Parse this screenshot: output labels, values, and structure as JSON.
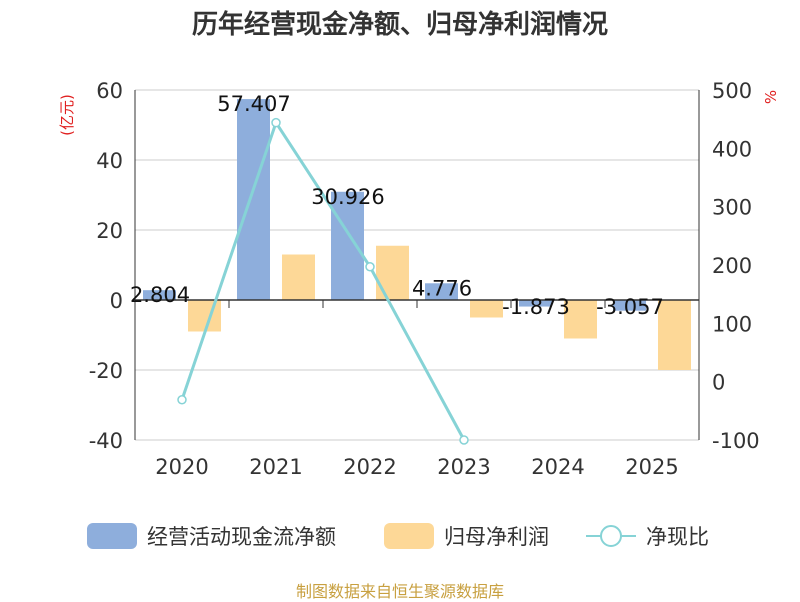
{
  "chart_data": {
    "type": "bar+line",
    "title": "历年经营现金净额、归母净利润情况",
    "categories": [
      "2020",
      "2021",
      "2022",
      "2023",
      "2024",
      "2025"
    ],
    "y_left": {
      "label": "(亿元)",
      "min": -40,
      "max": 60,
      "ticks": [
        -40,
        -20,
        0,
        20,
        40,
        60
      ]
    },
    "y_right": {
      "label": "%",
      "min": -100,
      "max": 500,
      "ticks": [
        -100,
        0,
        100,
        200,
        300,
        400,
        500
      ]
    },
    "series": [
      {
        "name": "经营活动现金流净额",
        "type": "bar",
        "axis": "left",
        "color": "#8eaedc",
        "values": [
          2.804,
          57.407,
          30.926,
          4.776,
          -1.873,
          -3.057
        ],
        "labels": [
          "2.804",
          "57.407",
          "30.926",
          "4.776",
          "-1.873",
          "-3.057"
        ]
      },
      {
        "name": "归母净利润",
        "type": "bar",
        "axis": "left",
        "color": "#fdd897",
        "values": [
          -9,
          13,
          15.5,
          -5,
          -11,
          -20
        ]
      },
      {
        "name": "净现比",
        "type": "line",
        "axis": "right",
        "color": "#86d3d6",
        "values": [
          -31,
          444,
          197,
          -100,
          null,
          null
        ]
      }
    ],
    "source": "制图数据来自恒生聚源数据库"
  }
}
